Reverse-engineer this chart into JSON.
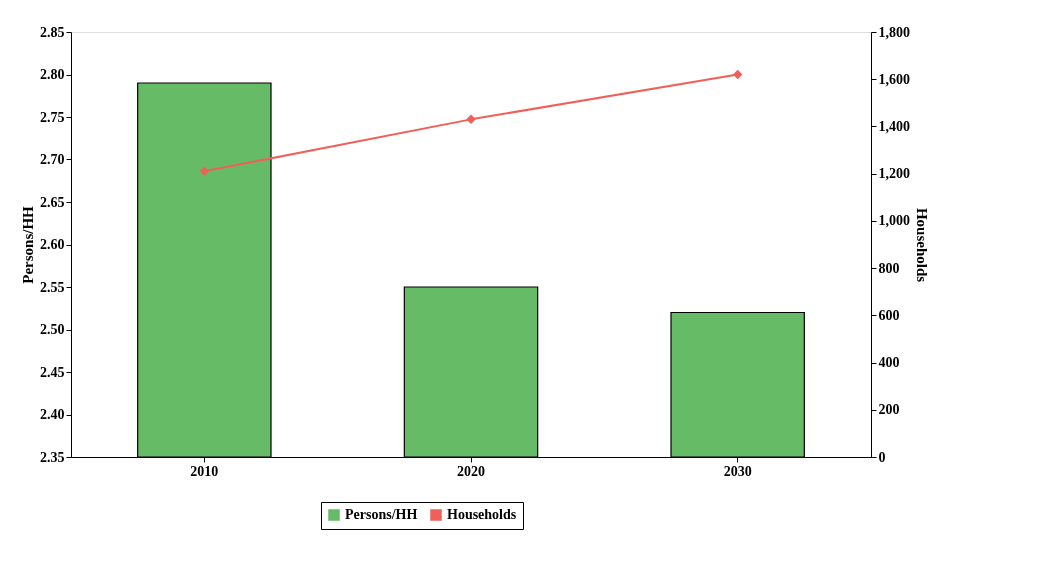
{
  "chart_data": {
    "type": "bar",
    "categories": [
      "2010",
      "2020",
      "2030"
    ],
    "ylabel": "Persons/HH",
    "y2label": "Households",
    "series": [
      {
        "name": "Persons/HH",
        "color": "#66bb66",
        "values": [
          2.79,
          2.55,
          2.52
        ]
      },
      {
        "name": "Households",
        "type": "line",
        "axis": "y2",
        "color": "#f0605a",
        "values": [
          1210,
          1430,
          1620
        ]
      }
    ],
    "ylim": [
      2.35,
      2.85
    ],
    "yticks": [
      2.35,
      {
        "value": 2.4,
        "label": "2.40"
      },
      2.45,
      {
        "value": 2.5,
        "label": "2.50"
      },
      2.55,
      {
        "value": 2.6,
        "label": "2.60"
      },
      2.65,
      {
        "value": 2.7,
        "label": "2.70"
      },
      2.75,
      {
        "value": 2.8,
        "label": "2.80"
      },
      2.85
    ],
    "y2lim": [
      0,
      1800
    ],
    "y2ticks": [
      0,
      200,
      400,
      600,
      800,
      {
        "value": 1000,
        "label": "1,000"
      },
      {
        "value": 1200,
        "label": "1,200"
      },
      {
        "value": 1400,
        "label": "1,400"
      },
      {
        "value": 1600,
        "label": "1,600"
      },
      {
        "value": 1800,
        "label": "1,800"
      }
    ],
    "marker": "diamond",
    "line_style": "solid",
    "grid": false,
    "legend": "bottom"
  }
}
